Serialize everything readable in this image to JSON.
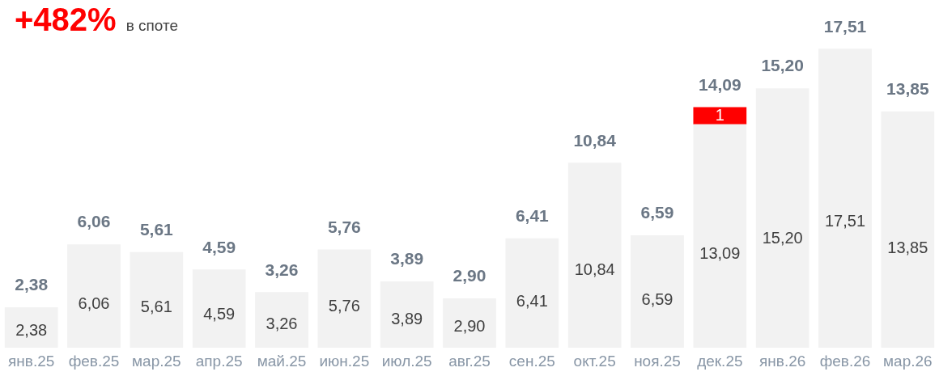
{
  "chart_data": {
    "type": "bar",
    "title": "+482%",
    "subtitle": "в споте",
    "stacked": true,
    "legend": false,
    "grid": false,
    "tick_labels": "x",
    "categories": [
      "янв.25",
      "фев.25",
      "мар.25",
      "апр.25",
      "май.25",
      "июн.25",
      "июл.25",
      "авг.25",
      "сен.25",
      "окт.25",
      "ноя.25",
      "дек.25",
      "янв.26",
      "фев.26",
      "мар.26"
    ],
    "series": [
      {
        "color": "#f2f2f2",
        "values": [
          2.38,
          6.06,
          5.61,
          4.59,
          3.26,
          5.76,
          3.89,
          2.9,
          6.41,
          10.84,
          6.59,
          13.09,
          15.2,
          17.51,
          13.85
        ],
        "value_labels": [
          "2,38",
          "6,06",
          "5,61",
          "4,59",
          "3,26",
          "5,76",
          "3,89",
          "2,90",
          "6,41",
          "10,84",
          "6,59",
          "13,09",
          "15,20",
          "17,51",
          "13,85"
        ]
      },
      {
        "color": "#ff0000",
        "values": [
          null,
          null,
          null,
          null,
          null,
          null,
          null,
          null,
          null,
          null,
          null,
          1,
          null,
          null,
          null
        ],
        "value_labels": [
          null,
          null,
          null,
          null,
          null,
          null,
          null,
          null,
          null,
          null,
          null,
          "1",
          null,
          null,
          null
        ]
      }
    ],
    "totals": [
      "2,38",
      "6,06",
      "5,61",
      "4,59",
      "3,26",
      "5,76",
      "3,89",
      "2,90",
      "6,41",
      "10,84",
      "6,59",
      "14,09",
      "15,20",
      "17,51",
      "13,85"
    ]
  }
}
